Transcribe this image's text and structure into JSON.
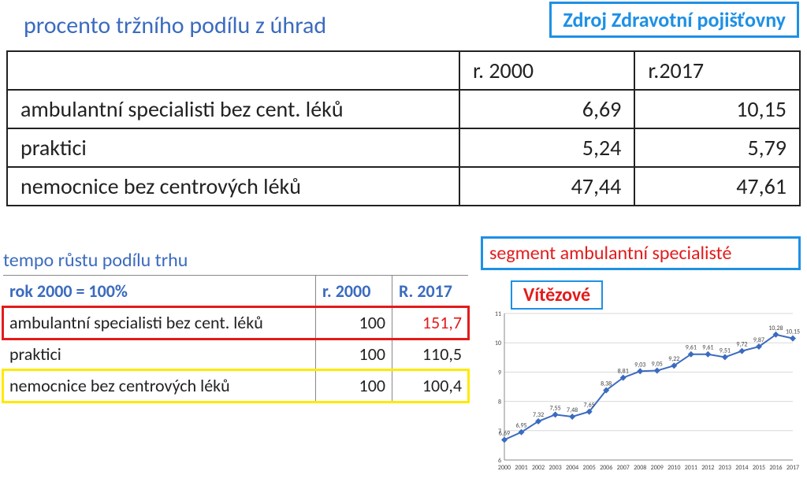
{
  "top_title": "procento tržního podílu z úhrad",
  "source_box": {
    "text": "Zdroj Zdravotní pojišťovny",
    "border_color": "#1e90e5",
    "text_color": "#1e90e5"
  },
  "main_table": {
    "columns": [
      "",
      "r. 2000",
      "r.2017"
    ],
    "rows": [
      {
        "label": "ambulantní specialisti bez cent. léků",
        "v2000": "6,69",
        "v2017": "10,15"
      },
      {
        "label": "praktici",
        "v2000": "5,24",
        "v2017": "5,79"
      },
      {
        "label": "nemocnice bez centrových léků",
        "v2000": "47,44",
        "v2017": "47,61"
      }
    ],
    "border_color": "#222222",
    "font_color_header": "#222222"
  },
  "growth_table": {
    "title": "tempo růstu podílu trhu",
    "subtitle": "rok 2000 = 100%",
    "columns": [
      "",
      "r. 2000",
      "R. 2017"
    ],
    "title_color": "#3b6bbf",
    "rows": [
      {
        "label": "ambulantní specialisti bez cent. léků",
        "v2000": "100",
        "v2017": "151,7",
        "highlight": "red",
        "v2017_color": "#e31b1b"
      },
      {
        "label": "praktici",
        "v2000": "100",
        "v2017": "110,5",
        "highlight": "none",
        "v2017_color": "#222222"
      },
      {
        "label": "nemocnice bez centrových léků",
        "v2000": "100",
        "v2017": "100,4",
        "highlight": "yellow",
        "v2017_color": "#222222"
      }
    ],
    "highlight_colors": {
      "red": "#e31b1b",
      "yellow": "#ffe900"
    }
  },
  "chart": {
    "type": "line",
    "title_box": {
      "text": "segment ambulantní specialisté",
      "border_color": "#1e90e5",
      "text_color": "#e31b1b"
    },
    "winners_box": {
      "text": "Vítězové",
      "border_color": "#1e90e5",
      "text_color": "#e31b1b"
    },
    "x_categories": [
      "2000",
      "2001",
      "2002",
      "2003",
      "2004",
      "2005",
      "2006",
      "2007",
      "2008",
      "2009",
      "2010",
      "2011",
      "2012",
      "2013",
      "2014",
      "2015",
      "2016",
      "2017"
    ],
    "y_values": [
      6.69,
      6.95,
      7.32,
      7.55,
      7.48,
      7.65,
      8.38,
      8.81,
      9.03,
      9.05,
      9.22,
      9.61,
      9.61,
      9.51,
      9.72,
      9.87,
      10.28,
      10.15
    ],
    "ylim": [
      6,
      11
    ],
    "ytick_step": 1,
    "line_color": "#3b6bbf",
    "marker_color": "#3b6bbf",
    "marker_style": "diamond",
    "marker_size": 4,
    "line_width": 2,
    "grid_color": "#d9d9d9",
    "background_color": "#ffffff",
    "axis_color": "#888888",
    "label_fontsize": 8,
    "data_label_color": "#444444",
    "show_data_labels": true
  }
}
